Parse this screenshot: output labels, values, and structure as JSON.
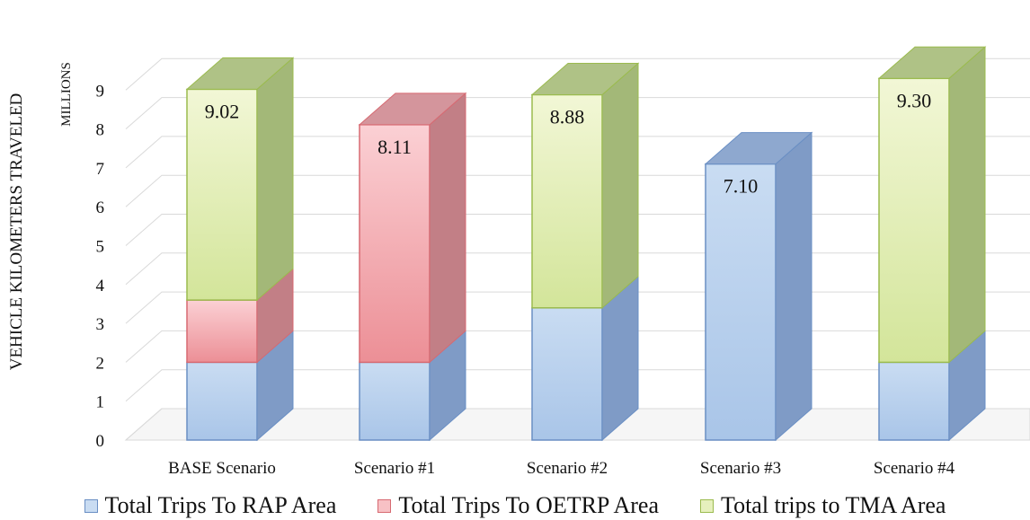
{
  "chart_data": {
    "type": "bar",
    "stacked": true,
    "three_d": true,
    "title": "",
    "ylabel": "VEHICLE KILOMETERS TRAVELED",
    "units_label": "MILLIONS",
    "ylim": [
      0,
      10
    ],
    "yticks": [
      "0",
      "1",
      "2",
      "3",
      "4",
      "5",
      "6",
      "7",
      "8",
      "9"
    ],
    "grid": true,
    "legend_position": "bottom",
    "categories": [
      "BASE Scenario",
      "Scenario #1",
      "Scenario #2",
      "Scenario #3",
      "Scenario #4"
    ],
    "series": [
      {
        "name": "Total Trips To RAP Area",
        "values": [
          2.0,
          2.0,
          3.4,
          7.1,
          2.0
        ],
        "color": "#8fb0dc"
      },
      {
        "name": "Total Trips To OETRP Area",
        "values": [
          1.6,
          6.11,
          0,
          0,
          0
        ],
        "color": "#ee9da2"
      },
      {
        "name": "Total trips to TMA Area",
        "values": [
          5.42,
          0,
          5.48,
          0,
          7.3
        ],
        "color": "#cfe28c"
      }
    ],
    "data_labels": [
      "9.02",
      "8.11",
      "8.88",
      "7.10",
      "9.30"
    ]
  }
}
